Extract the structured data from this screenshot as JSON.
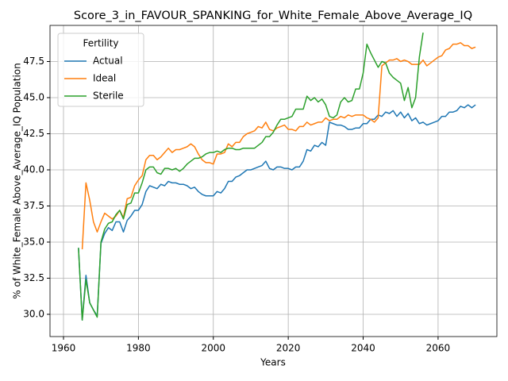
{
  "chart_data": {
    "type": "line",
    "title": "Score_3_in_FAVOUR_SPANKING_for_White_Female_Above_Average_IQ",
    "xlabel": "Years",
    "ylabel": "% of White_Female Above_Average_IQ Population",
    "legend_title": "Fertility",
    "legend": "upper left",
    "grid": true,
    "x": [
      1964,
      1965,
      1966,
      1967,
      1968,
      1969,
      1970,
      1971,
      1972,
      1973,
      1974,
      1975,
      1976,
      1977,
      1978,
      1979,
      1980,
      1981,
      1982,
      1983,
      1984,
      1985,
      1986,
      1987,
      1988,
      1989,
      1990,
      1991,
      1992,
      1993,
      1994,
      1995,
      1996,
      1997,
      1998,
      1999,
      2000,
      2001,
      2002,
      2003,
      2004,
      2005,
      2006,
      2007,
      2008,
      2009,
      2010,
      2011,
      2012,
      2013,
      2014,
      2015,
      2016,
      2017,
      2018,
      2019,
      2020,
      2021,
      2022,
      2023,
      2024,
      2025,
      2026,
      2027,
      2028,
      2029,
      2030,
      2031,
      2032,
      2033,
      2034,
      2035,
      2036,
      2037,
      2038,
      2039,
      2040,
      2041,
      2042,
      2043,
      2044,
      2045,
      2046,
      2047,
      2048,
      2049,
      2050,
      2051,
      2052,
      2053,
      2054,
      2055,
      2056,
      2057,
      2058,
      2059,
      2060,
      2061,
      2062,
      2063,
      2064,
      2065,
      2066,
      2067,
      2068,
      2069,
      2070
    ],
    "series": [
      {
        "name": "Actual",
        "color": "#1f77b4",
        "values": [
          34.6,
          29.6,
          32.7,
          30.8,
          30.3,
          29.9,
          34.9,
          35.6,
          36.0,
          35.8,
          36.4,
          36.4,
          35.7,
          36.5,
          36.8,
          37.2,
          37.2,
          37.6,
          38.5,
          38.9,
          38.8,
          38.7,
          39.0,
          38.9,
          39.2,
          39.1,
          39.1,
          39.0,
          39.0,
          38.9,
          38.7,
          38.8,
          38.5,
          38.3,
          38.2,
          38.2,
          38.2,
          38.5,
          38.4,
          38.7,
          39.2,
          39.2,
          39.5,
          39.6,
          39.8,
          40.0,
          40.0,
          40.1,
          40.2,
          40.3,
          40.6,
          40.1,
          40.0,
          40.2,
          40.2,
          40.1,
          40.1,
          40.0,
          40.2,
          40.2,
          40.6,
          41.4,
          41.3,
          41.7,
          41.6,
          41.9,
          41.7,
          43.3,
          43.2,
          43.1,
          43.1,
          43.0,
          42.8,
          42.8,
          42.9,
          42.9,
          43.2,
          43.2,
          43.5,
          43.5,
          43.8,
          43.7,
          44.0,
          43.9,
          44.1,
          43.7,
          44.0,
          43.6,
          43.9,
          43.4,
          43.6,
          43.2,
          43.3,
          43.1,
          43.2,
          43.3,
          43.4,
          43.7,
          43.7,
          44.0,
          44.0,
          44.1,
          44.4,
          44.3,
          44.5,
          44.3,
          44.5
        ]
      },
      {
        "name": "Ideal",
        "color": "#ff7f0e",
        "values": [
          null,
          34.5,
          39.1,
          37.9,
          36.4,
          35.7,
          36.4,
          37.0,
          36.8,
          36.6,
          36.8,
          37.2,
          36.7,
          38.0,
          38.1,
          38.9,
          39.3,
          39.6,
          40.7,
          41.0,
          41.0,
          40.7,
          40.9,
          41.2,
          41.5,
          41.2,
          41.4,
          41.4,
          41.5,
          41.6,
          41.8,
          41.6,
          41.1,
          40.7,
          40.5,
          40.5,
          40.4,
          41.1,
          41.1,
          41.2,
          41.8,
          41.6,
          41.9,
          41.9,
          42.3,
          42.5,
          42.6,
          42.7,
          43.0,
          42.9,
          43.3,
          42.8,
          42.7,
          42.9,
          43.0,
          43.1,
          42.8,
          42.8,
          42.7,
          43.0,
          43.0,
          43.3,
          43.1,
          43.2,
          43.3,
          43.3,
          43.6,
          43.4,
          43.5,
          43.5,
          43.7,
          43.6,
          43.8,
          43.7,
          43.8,
          43.8,
          43.8,
          43.6,
          43.5,
          43.3,
          43.6,
          47.2,
          47.4,
          47.6,
          47.6,
          47.7,
          47.5,
          47.6,
          47.5,
          47.3,
          47.3,
          47.3,
          47.6,
          47.2,
          47.4,
          47.6,
          47.8,
          47.9,
          48.3,
          48.4,
          48.7,
          48.7,
          48.8,
          48.6,
          48.6,
          48.4,
          48.5
        ]
      },
      {
        "name": "Sterile",
        "color": "#2ca02c",
        "values": [
          34.6,
          29.6,
          32.4,
          30.8,
          30.3,
          29.8,
          35.0,
          35.9,
          36.3,
          36.4,
          36.9,
          37.2,
          36.6,
          37.6,
          37.7,
          38.4,
          38.4,
          39.1,
          40.0,
          40.2,
          40.2,
          39.8,
          39.7,
          40.1,
          40.1,
          40.0,
          40.1,
          39.9,
          40.1,
          40.4,
          40.6,
          40.8,
          40.8,
          40.9,
          41.1,
          41.2,
          41.2,
          41.3,
          41.2,
          41.4,
          41.5,
          41.5,
          41.4,
          41.4,
          41.5,
          41.5,
          41.5,
          41.5,
          41.7,
          41.9,
          42.3,
          42.3,
          42.6,
          43.1,
          43.5,
          43.5,
          43.6,
          43.7,
          44.2,
          44.2,
          44.2,
          45.1,
          44.8,
          45.0,
          44.7,
          44.9,
          44.5,
          43.7,
          43.6,
          43.8,
          44.7,
          45.0,
          44.7,
          44.8,
          45.6,
          45.6,
          46.7,
          48.7,
          48.1,
          47.6,
          47.1,
          47.5,
          47.4,
          46.7,
          46.4,
          46.2,
          46.0,
          44.8,
          45.7,
          44.3,
          45.0,
          47.8,
          49.5,
          null,
          null,
          null,
          null,
          null,
          null,
          null,
          null,
          null,
          null,
          null,
          null,
          null,
          null
        ]
      }
    ],
    "xlim": [
      1956.4,
      2075.7
    ],
    "ylim": [
      28.46,
      50.0
    ],
    "xticks": [
      1960,
      1980,
      2000,
      2020,
      2040,
      2060
    ],
    "yticks": [
      {
        "value": 30,
        "label": "30.0"
      },
      32.5,
      {
        "value": 35,
        "label": "35.0"
      },
      37.5,
      {
        "value": 40,
        "label": "40.0"
      },
      42.5,
      {
        "value": 45,
        "label": "45.0"
      },
      47.5
    ]
  }
}
